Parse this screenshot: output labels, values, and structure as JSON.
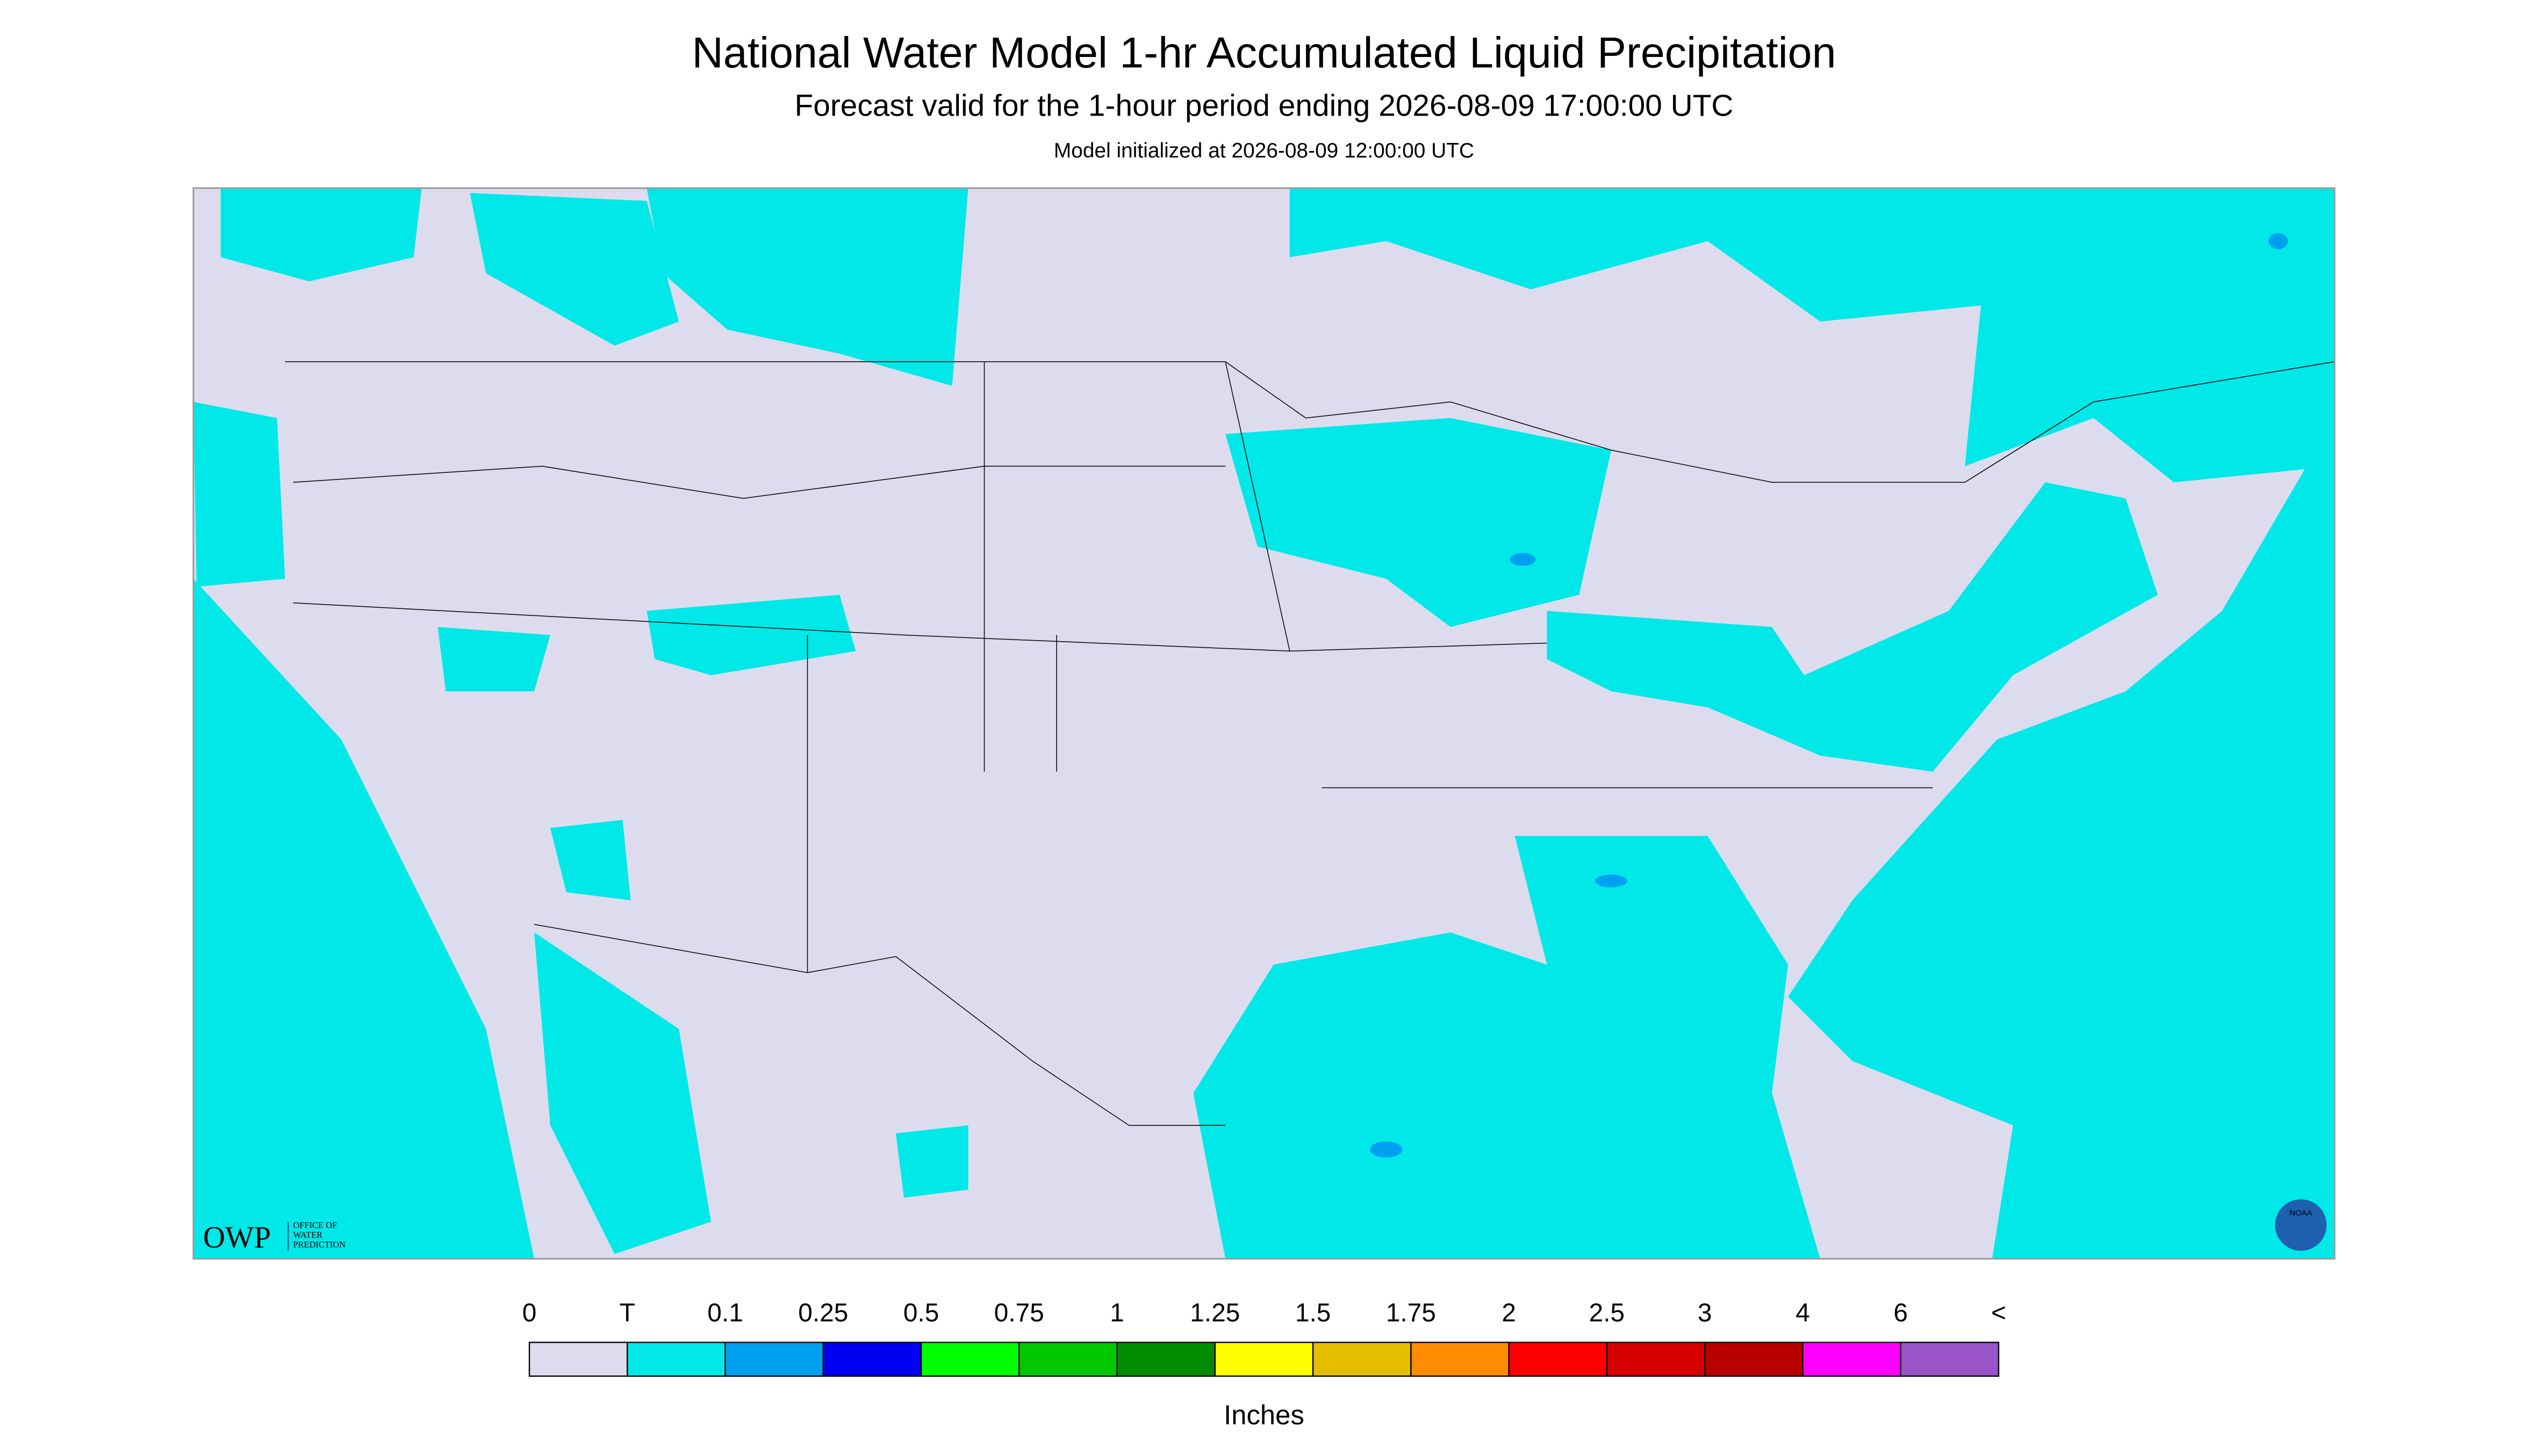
{
  "header": {
    "title": "National Water Model 1-hr Accumulated Liquid Precipitation",
    "subtitle": "Forecast valid for the 1-hour period ending 2026-08-09 17:00:00 UTC",
    "initialized": "Model initialized at 2026-08-09 12:00:00 UTC"
  },
  "legend": {
    "labels": [
      "0",
      "T",
      "0.1",
      "0.25",
      "0.5",
      "0.75",
      "1",
      "1.25",
      "1.5",
      "1.75",
      "2",
      "2.5",
      "3",
      "4",
      "6",
      "<"
    ],
    "colors": [
      "#dcdcee",
      "#00e8e8",
      "#00a0f0",
      "#0000f0",
      "#00ff00",
      "#00c800",
      "#008c00",
      "#ffff00",
      "#e6be00",
      "#ff8c00",
      "#ff0000",
      "#d70000",
      "#b80000",
      "#ff00ff",
      "#9955c8"
    ],
    "unit": "Inches"
  },
  "logos": {
    "owp": "OWP",
    "owp_name": [
      "OFFICE OF",
      "WATER",
      "PREDICTION"
    ],
    "noaa": "NOAA"
  }
}
